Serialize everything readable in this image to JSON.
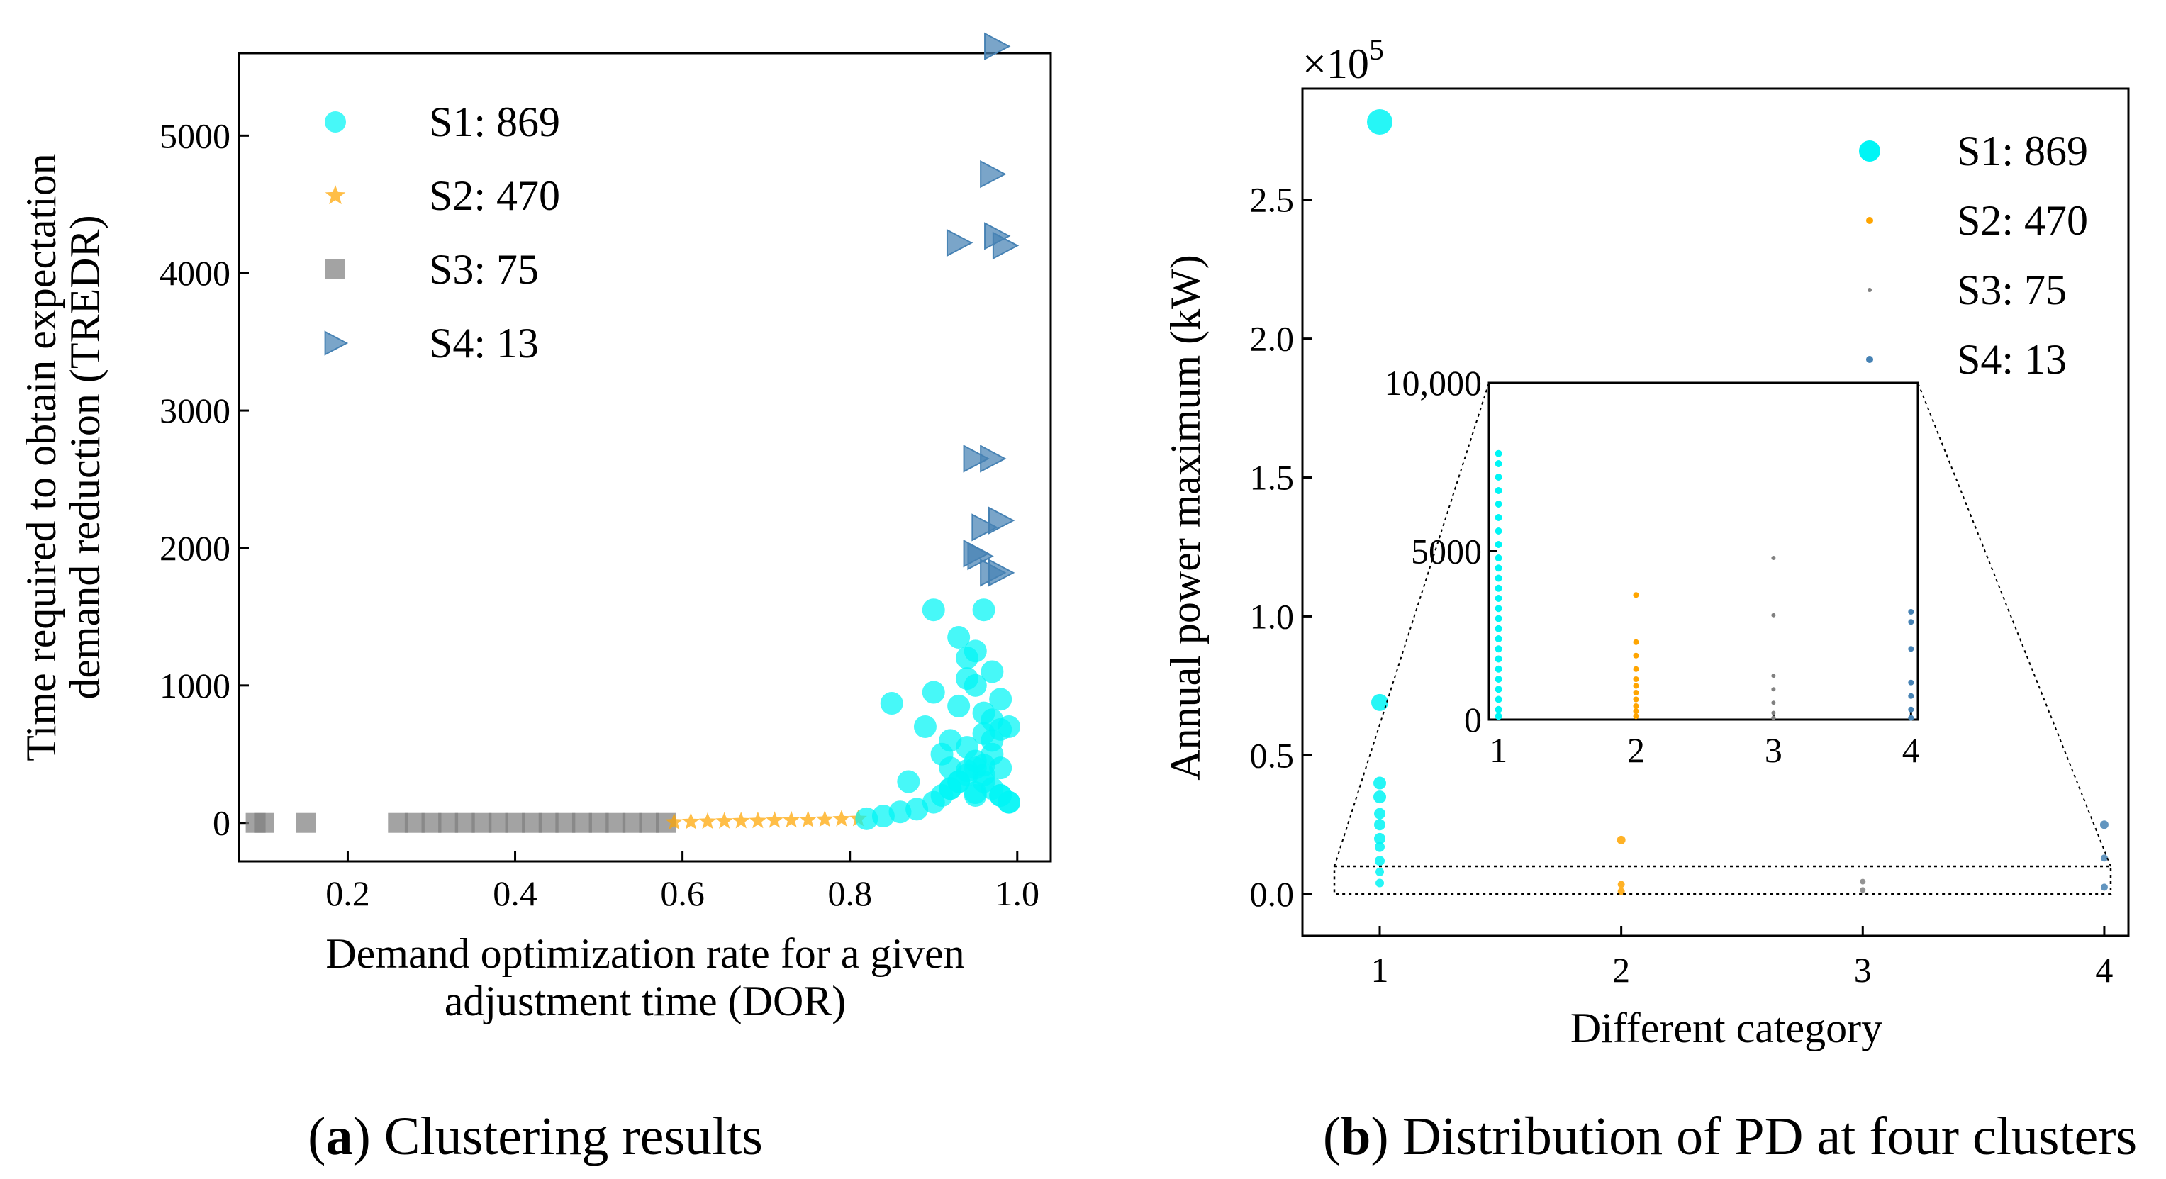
{
  "chart_data": [
    {
      "type": "scatter",
      "panel": "a",
      "caption_letter": "a",
      "caption_text": ") Clustering results",
      "xlabel_lines": [
        "Demand optimization rate for a given",
        "adjustment time (DOR)"
      ],
      "ylabel_lines": [
        "Time required to obtain expectation",
        "demand reduction (TREDR)"
      ],
      "xlim": [
        0.07,
        1.04
      ],
      "ylim": [
        -280,
        5600
      ],
      "xticks": [
        0.2,
        0.4,
        0.6,
        0.8,
        1.0
      ],
      "xtick_labels": [
        "0.2",
        "0.4",
        "0.6",
        "0.8",
        "1.0"
      ],
      "yticks": [
        0,
        1000,
        2000,
        3000,
        4000,
        5000
      ],
      "ytick_labels": [
        "0",
        "1000",
        "2000",
        "3000",
        "4000",
        "5000"
      ],
      "legend": [
        {
          "label": "S1: 869",
          "color": "#00f5f5",
          "marker": "circle"
        },
        {
          "label": "S2: 470",
          "color": "#ffa500",
          "marker": "star"
        },
        {
          "label": "S3: 75",
          "color": "#808080",
          "marker": "square"
        },
        {
          "label": "S4: 13",
          "color": "#4682b4",
          "marker": "triangle-right"
        }
      ],
      "series": [
        {
          "name": "S3: 75",
          "color": "#808080",
          "marker": "square",
          "x": [
            0.09,
            0.1,
            0.15,
            0.26,
            0.28,
            0.3,
            0.32,
            0.34,
            0.36,
            0.38,
            0.4,
            0.42,
            0.44,
            0.46,
            0.48,
            0.5,
            0.52,
            0.54,
            0.56,
            0.58
          ],
          "y": [
            0,
            0,
            0,
            0,
            0,
            0,
            0,
            0,
            0,
            0,
            0,
            0,
            0,
            0,
            0,
            0,
            0,
            0,
            0,
            0
          ]
        },
        {
          "name": "S2: 470",
          "color": "#ffa500",
          "marker": "star",
          "x": [
            0.59,
            0.61,
            0.63,
            0.65,
            0.67,
            0.69,
            0.71,
            0.73,
            0.75,
            0.77,
            0.79,
            0.81
          ],
          "y": [
            5,
            8,
            10,
            12,
            14,
            15,
            18,
            20,
            22,
            25,
            28,
            30
          ]
        },
        {
          "name": "S1: 869",
          "color": "#00f5f5",
          "marker": "circle",
          "x": [
            0.82,
            0.84,
            0.86,
            0.88,
            0.9,
            0.91,
            0.92,
            0.93,
            0.94,
            0.95,
            0.96,
            0.97,
            0.98,
            0.99,
            0.85,
            0.87,
            0.89,
            0.9,
            0.92,
            0.93,
            0.94,
            0.95,
            0.96,
            0.97,
            0.98,
            0.99,
            0.91,
            0.93,
            0.95,
            0.96,
            0.97,
            0.98,
            0.94,
            0.95,
            0.96,
            0.97,
            0.9,
            0.92,
            0.94,
            0.96,
            0.98,
            0.99,
            0.93,
            0.95,
            0.97,
            0.96,
            0.94,
            0.98,
            0.92,
            0.95
          ],
          "y": [
            30,
            50,
            80,
            100,
            150,
            200,
            250,
            300,
            350,
            400,
            300,
            250,
            200,
            150,
            870,
            300,
            700,
            950,
            600,
            850,
            1200,
            1000,
            800,
            600,
            900,
            700,
            500,
            1350,
            1250,
            1550,
            1100,
            400,
            1050,
            450,
            350,
            500,
            1550,
            400,
            550,
            650,
            200,
            150,
            300,
            200,
            750,
            420,
            380,
            680,
            250,
            220
          ]
        },
        {
          "name": "S4: 13",
          "color": "#4682b4",
          "marker": "triangle-right",
          "x": [
            0.975,
            0.97,
            0.93,
            0.975,
            0.985,
            0.95,
            0.97,
            0.98,
            0.96,
            0.95,
            0.955,
            0.97,
            0.98
          ],
          "y": [
            5650,
            4720,
            4220,
            4270,
            4200,
            2650,
            2650,
            2200,
            2150,
            1960,
            1940,
            1820,
            1820
          ]
        }
      ]
    },
    {
      "type": "scatter",
      "panel": "b",
      "caption_letter": "b",
      "caption_text": ") Distribution of PD at four clusters",
      "xlabel": "Different category",
      "ylabel": "Annual power maximum (kW)",
      "scale_base": "×10",
      "scale_exp": "5",
      "xlim": [
        0.68,
        4.1
      ],
      "ylim": [
        -15000,
        290000
      ],
      "xticks": [
        1,
        2,
        3,
        4
      ],
      "xtick_labels": [
        "1",
        "2",
        "3",
        "4"
      ],
      "yticks": [
        0,
        50000,
        100000,
        150000,
        200000,
        250000
      ],
      "ytick_labels": [
        "0.0",
        "0.5",
        "1.0",
        "1.5",
        "2.0",
        "2.5"
      ],
      "legend": [
        {
          "label": "S1: 869",
          "color": "#00f5f5",
          "size": "large"
        },
        {
          "label": "S2: 470",
          "color": "#ffa500",
          "size": "small"
        },
        {
          "label": "S3: 75",
          "color": "#808080",
          "size": "tiny"
        },
        {
          "label": "S4: 13",
          "color": "#4682b4",
          "size": "small"
        }
      ],
      "series": [
        {
          "name": "S1: 869",
          "color": "#00f5f5",
          "x": [
            1,
            1,
            1,
            1,
            1,
            1,
            1,
            1,
            1,
            1,
            1
          ],
          "y": [
            278000,
            69000,
            40000,
            35000,
            29000,
            25000,
            20000,
            17000,
            12000,
            8000,
            4000
          ],
          "r": [
            18,
            12,
            9,
            9,
            8,
            8,
            8,
            7,
            7,
            6,
            6
          ]
        },
        {
          "name": "S2: 470",
          "color": "#ffa500",
          "x": [
            2,
            2,
            2
          ],
          "y": [
            19500,
            3500,
            1000
          ],
          "r": [
            6,
            5,
            5
          ]
        },
        {
          "name": "S3: 75",
          "color": "#808080",
          "x": [
            3,
            3
          ],
          "y": [
            4500,
            1500
          ],
          "r": [
            4,
            4
          ]
        },
        {
          "name": "S4: 13",
          "color": "#4682b4",
          "x": [
            4,
            4,
            4
          ],
          "y": [
            25000,
            13000,
            2500
          ],
          "r": [
            6,
            5,
            5
          ]
        }
      ],
      "inset": {
        "xlim": [
          0.93,
          4.05
        ],
        "ylim": [
          0,
          10000
        ],
        "xticks": [
          1,
          2,
          3,
          4
        ],
        "xtick_labels": [
          "1",
          "2",
          "3",
          "4"
        ],
        "yticks": [
          0,
          5000,
          10000
        ],
        "ytick_labels": [
          "0",
          "5000",
          "10,000"
        ],
        "zoom_y_range": [
          0,
          10000
        ],
        "series": [
          {
            "name": "S1: 869",
            "color": "#00f5f5",
            "x": 1,
            "y": [
              7900,
              7600,
              7200,
              6800,
              6400,
              6000,
              5600,
              5200,
              4800,
              4500,
              4200,
              3900,
              3600,
              3300,
              3000,
              2700,
              2400,
              2100,
              1800,
              1500,
              1200,
              900,
              600,
              300,
              100
            ]
          },
          {
            "name": "S2: 470",
            "color": "#ffa500",
            "x": 2,
            "y": [
              3700,
              2300,
              1900,
              1500,
              1200,
              1000,
              800,
              600,
              400,
              250,
              100
            ]
          },
          {
            "name": "S3: 75",
            "color": "#808080",
            "x": 3,
            "y": [
              4800,
              3100,
              1300,
              900,
              500,
              200,
              50
            ]
          },
          {
            "name": "S4: 13",
            "color": "#4682b4",
            "x": 4,
            "y": [
              3200,
              2900,
              2100,
              1100,
              700,
              300,
              50
            ]
          }
        ]
      }
    }
  ]
}
